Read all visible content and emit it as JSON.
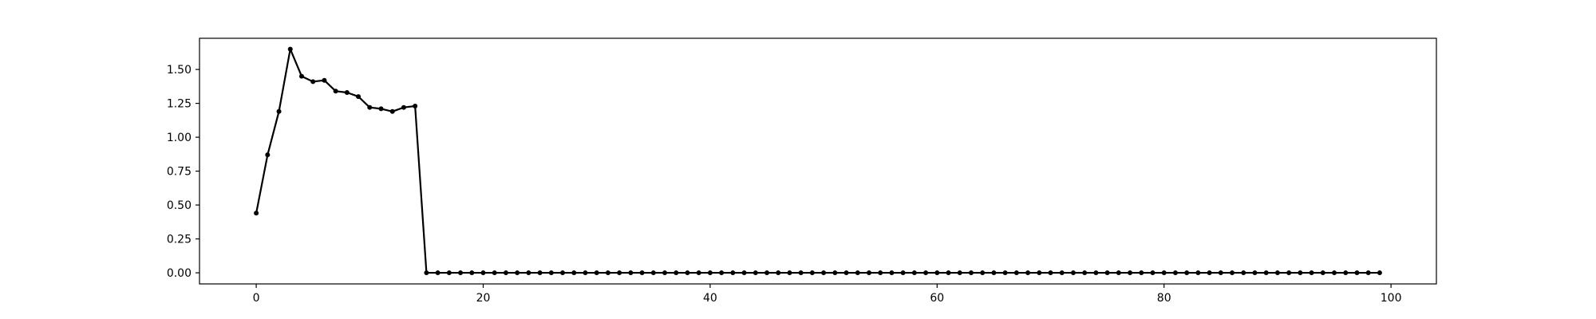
{
  "chart_data": {
    "type": "line",
    "title": "",
    "xlabel": "",
    "ylabel": "",
    "xlim": [
      -5,
      104
    ],
    "ylim": [
      -0.082,
      1.73
    ],
    "grid": false,
    "legend": "none",
    "colors": {
      "line": "#000000",
      "marker": "#000000",
      "axes": "#000000",
      "background": "#ffffff"
    },
    "x_ticks": [
      {
        "value": 0,
        "label": "0"
      },
      {
        "value": 20,
        "label": "20"
      },
      {
        "value": 40,
        "label": "40"
      },
      {
        "value": 60,
        "label": "60"
      },
      {
        "value": 80,
        "label": "80"
      },
      {
        "value": 100,
        "label": "100"
      }
    ],
    "y_ticks": [
      {
        "value": 0.0,
        "label": "0.00"
      },
      {
        "value": 0.25,
        "label": "0.25"
      },
      {
        "value": 0.5,
        "label": "0.50"
      },
      {
        "value": 0.75,
        "label": "0.75"
      },
      {
        "value": 1.0,
        "label": "1.00"
      },
      {
        "value": 1.25,
        "label": "1.25"
      },
      {
        "value": 1.5,
        "label": "1.50"
      }
    ],
    "series": [
      {
        "x": [
          0,
          1,
          2,
          3,
          4,
          5,
          6,
          7,
          8,
          9,
          10,
          11,
          12,
          13,
          14,
          15,
          16,
          17,
          18,
          19,
          20,
          21,
          22,
          23,
          24,
          25,
          26,
          27,
          28,
          29,
          30,
          31,
          32,
          33,
          34,
          35,
          36,
          37,
          38,
          39,
          40,
          41,
          42,
          43,
          44,
          45,
          46,
          47,
          48,
          49,
          50,
          51,
          52,
          53,
          54,
          55,
          56,
          57,
          58,
          59,
          60,
          61,
          62,
          63,
          64,
          65,
          66,
          67,
          68,
          69,
          70,
          71,
          72,
          73,
          74,
          75,
          76,
          77,
          78,
          79,
          80,
          81,
          82,
          83,
          84,
          85,
          86,
          87,
          88,
          89,
          90,
          91,
          92,
          93,
          94,
          95,
          96,
          97,
          98,
          99
        ],
        "values": [
          0.44,
          0.87,
          1.19,
          1.65,
          1.45,
          1.41,
          1.42,
          1.34,
          1.33,
          1.3,
          1.22,
          1.21,
          1.19,
          1.22,
          1.23,
          0,
          0,
          0,
          0,
          0,
          0,
          0,
          0,
          0,
          0,
          0,
          0,
          0,
          0,
          0,
          0,
          0,
          0,
          0,
          0,
          0,
          0,
          0,
          0,
          0,
          0,
          0,
          0,
          0,
          0,
          0,
          0,
          0,
          0,
          0,
          0,
          0,
          0,
          0,
          0,
          0,
          0,
          0,
          0,
          0,
          0,
          0,
          0,
          0,
          0,
          0,
          0,
          0,
          0,
          0,
          0,
          0,
          0,
          0,
          0,
          0,
          0,
          0,
          0,
          0,
          0,
          0,
          0,
          0,
          0,
          0,
          0,
          0,
          0,
          0,
          0,
          0,
          0,
          0,
          0,
          0,
          0,
          0,
          0,
          0
        ]
      }
    ]
  }
}
